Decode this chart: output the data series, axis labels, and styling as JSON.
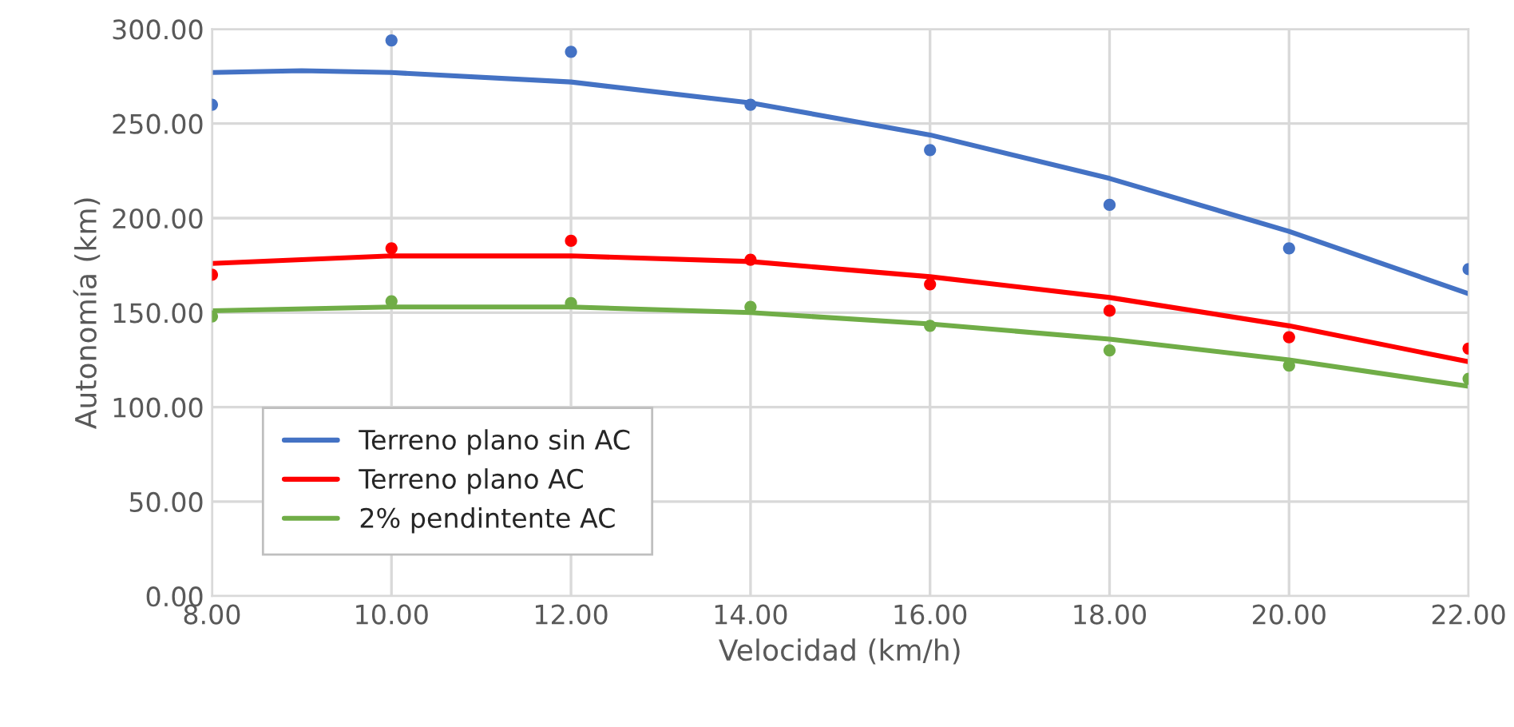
{
  "chart_data": {
    "type": "scatter",
    "xlabel": "Velocidad (km/h)",
    "ylabel": "Autonomía (km)",
    "xlim": [
      8,
      22
    ],
    "xticks": [
      {
        "value": 8,
        "label": "8.00"
      },
      {
        "value": 10,
        "label": "10.00"
      },
      {
        "value": 12,
        "label": "12.00"
      },
      {
        "value": 14,
        "label": "14.00"
      },
      {
        "value": 16,
        "label": "16.00"
      },
      {
        "value": 18,
        "label": "18.00"
      },
      {
        "value": 20,
        "label": "20.00"
      },
      {
        "value": 22,
        "label": "22.00"
      }
    ],
    "ylim": [
      0,
      300
    ],
    "yticks": [
      {
        "value": 0,
        "label": "0.00"
      },
      {
        "value": 50,
        "label": "50.00"
      },
      {
        "value": 100,
        "label": "100.00"
      },
      {
        "value": 150,
        "label": "150.00"
      },
      {
        "value": 200,
        "label": "200.00"
      },
      {
        "value": 250,
        "label": "250.00"
      },
      {
        "value": 300,
        "label": "300.00"
      }
    ],
    "grid": true,
    "legend": "bottom left",
    "series": [
      {
        "marker": "circle",
        "color": "#4472c4",
        "x": [
          8,
          10,
          12,
          14,
          16,
          18,
          20,
          22
        ],
        "values": [
          260,
          294,
          288,
          260,
          236,
          207,
          184,
          173
        ]
      },
      {
        "marker": "circle",
        "color": "#ff0000",
        "x": [
          8,
          10,
          12,
          14,
          16,
          18,
          20,
          22
        ],
        "values": [
          170,
          184,
          188,
          178,
          165,
          151,
          137,
          131
        ]
      },
      {
        "marker": "circle",
        "color": "#70ad47",
        "x": [
          8,
          10,
          12,
          14,
          16,
          18,
          20,
          22
        ],
        "values": [
          148,
          156,
          155,
          153,
          143,
          130,
          122,
          115
        ]
      },
      {
        "type": "line",
        "marker": "none",
        "name": "Terreno plano sin AC",
        "color": "#4472c4",
        "x": [
          8,
          9,
          10,
          12,
          14,
          16,
          18,
          20,
          22
        ],
        "values": [
          277,
          278,
          277,
          272,
          261,
          244,
          221,
          193,
          160
        ]
      },
      {
        "type": "line",
        "marker": "none",
        "name": "Terreno plano AC",
        "color": "#ff0000",
        "x": [
          8,
          10,
          12,
          14,
          16,
          18,
          20,
          22
        ],
        "values": [
          176,
          180,
          180,
          177,
          169,
          158,
          143,
          124
        ]
      },
      {
        "type": "line",
        "marker": "none",
        "name": "2% pendintente AC",
        "color": "#70ad47",
        "x": [
          8,
          10,
          12,
          14,
          16,
          18,
          20,
          22
        ],
        "values": [
          151,
          153,
          153,
          150,
          144,
          136,
          125,
          111
        ]
      }
    ]
  }
}
